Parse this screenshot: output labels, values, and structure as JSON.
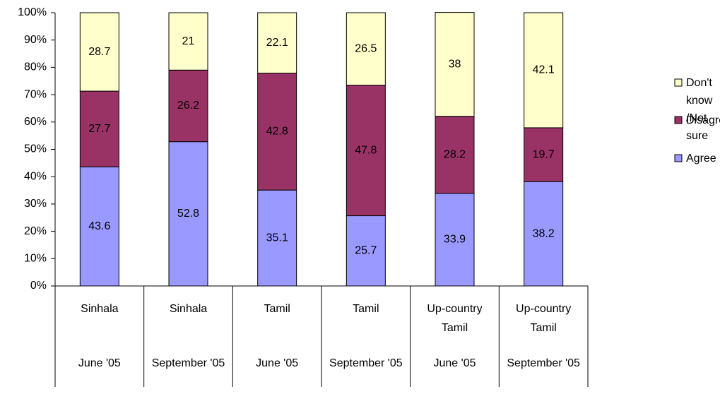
{
  "chart_data": {
    "type": "stacked_bar",
    "categories": [
      [
        "Sinhala",
        "June '05"
      ],
      [
        "Sinhala",
        "September '05"
      ],
      [
        "Tamil",
        "June '05"
      ],
      [
        "Tamil",
        "September '05"
      ],
      [
        "Up-country Tamil",
        "June '05"
      ],
      [
        "Up-country Tamil",
        "September '05"
      ]
    ],
    "series": [
      {
        "name": "Agree",
        "color": "#9999ff",
        "values": [
          43.6,
          52.8,
          35.1,
          25.7,
          33.9,
          38.2
        ]
      },
      {
        "name": "Disagree",
        "color": "#993366",
        "values": [
          27.7,
          26.2,
          42.8,
          47.8,
          28.2,
          19.7
        ]
      },
      {
        "name": "Don't know /Not sure",
        "color": "#ffffcc",
        "values": [
          28.7,
          21,
          22.1,
          26.5,
          38,
          42.1
        ]
      }
    ],
    "ylim": [
      0,
      100
    ],
    "yticks": [
      {
        "value": 0,
        "label": "0%"
      },
      {
        "value": 10,
        "label": "10%"
      },
      {
        "value": 20,
        "label": "20%"
      },
      {
        "value": 30,
        "label": "30%"
      },
      {
        "value": 40,
        "label": "40%"
      },
      {
        "value": 50,
        "label": "50%"
      },
      {
        "value": 60,
        "label": "60%"
      },
      {
        "value": 70,
        "label": "70%"
      },
      {
        "value": 80,
        "label": "80%"
      },
      {
        "value": 90,
        "label": "90%"
      },
      {
        "value": 100,
        "label": "100%"
      }
    ],
    "legend": "right"
  }
}
